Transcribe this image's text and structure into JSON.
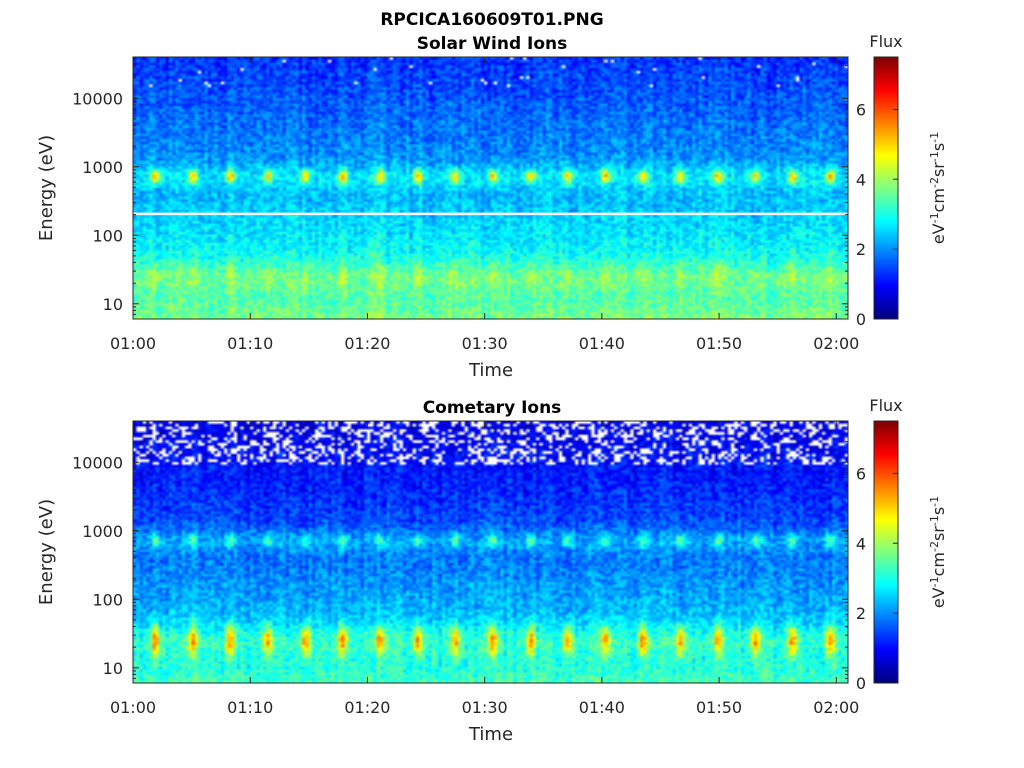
{
  "figure_title": "RPCICA160609T01.PNG",
  "colormap": "jet",
  "missing_color": "#ffffff",
  "chart_data": [
    {
      "type": "heatmap",
      "title": "Solar Wind Ions",
      "xlabel": "Time",
      "ylabel": "Energy (eV)",
      "x_ticks": [
        "01:00",
        "01:10",
        "01:20",
        "01:30",
        "01:40",
        "01:50",
        "02:00"
      ],
      "x_range_minutes": [
        0,
        61
      ],
      "y_scale": "log",
      "y_range": [
        6,
        40000
      ],
      "y_ticks": [
        10,
        100,
        1000,
        10000
      ],
      "y_tick_labels": [
        "10",
        "100",
        "1000",
        "10000"
      ],
      "colorbar": {
        "title": "Flux",
        "label": "eV-1cm-2sr-1s-1",
        "range": [
          0,
          7.5
        ],
        "ticks": [
          0,
          2,
          4,
          6
        ]
      },
      "features": {
        "background_low_energy_flux": 3.8,
        "background_high_energy_flux": 1.3,
        "pulse_period_minutes": 3.2,
        "solar_wind_band_energy_eV": 720,
        "solar_wind_band_peak_flux": 4.6,
        "low_energy_band_energy_eV": 25,
        "low_energy_band_peak_flux": 4.8,
        "gap_line_energy_eV": 205
      }
    },
    {
      "type": "heatmap",
      "title": "Cometary Ions",
      "xlabel": "Time",
      "ylabel": "Energy (eV)",
      "x_ticks": [
        "01:00",
        "01:10",
        "01:20",
        "01:30",
        "01:40",
        "01:50",
        "02:00"
      ],
      "x_range_minutes": [
        0,
        61
      ],
      "y_scale": "log",
      "y_range": [
        6,
        40000
      ],
      "y_ticks": [
        10,
        100,
        1000,
        10000
      ],
      "y_tick_labels": [
        "10",
        "100",
        "1000",
        "10000"
      ],
      "colorbar": {
        "title": "Flux",
        "label": "eV-1cm-2sr-1s-1",
        "range": [
          0,
          7.5
        ],
        "ticks": [
          0,
          2,
          4,
          6
        ]
      },
      "features": {
        "background_low_energy_flux": 3.4,
        "background_high_energy_flux": 0.7,
        "pulse_period_minutes": 3.2,
        "solar_wind_band_energy_eV": 720,
        "solar_wind_band_peak_flux": 3.6,
        "low_energy_band_energy_eV": 25,
        "low_energy_band_peak_flux": 6.3,
        "missing_above_energy_eV": 9000
      }
    }
  ]
}
